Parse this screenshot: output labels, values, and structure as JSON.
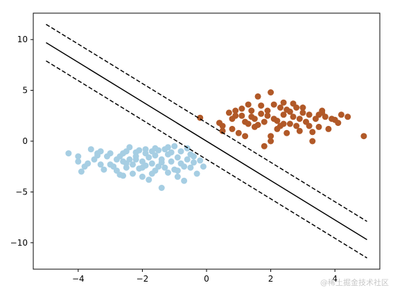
{
  "watermark": "@稀土掘金技术社区",
  "chart_data": {
    "type": "scatter",
    "title": "",
    "xlabel": "",
    "ylabel": "",
    "xlim": [
      -5.4,
      5.4
    ],
    "ylim": [
      -12.6,
      12.6
    ],
    "xticks": [
      -4,
      -2,
      0,
      2,
      4
    ],
    "yticks": [
      -10,
      -5,
      0,
      5,
      10
    ],
    "grid": false,
    "series": [
      {
        "color": "#a6cee3",
        "points": [
          [
            -4.3,
            -1.2
          ],
          [
            -4.0,
            -2.0
          ],
          [
            -4.0,
            -1.5
          ],
          [
            -3.9,
            -3.0
          ],
          [
            -3.8,
            -2.5
          ],
          [
            -3.7,
            -2.2
          ],
          [
            -3.6,
            -0.8
          ],
          [
            -3.5,
            -1.8
          ],
          [
            -3.4,
            -1.2
          ],
          [
            -3.3,
            -1.0
          ],
          [
            -3.2,
            -2.8
          ],
          [
            -3.1,
            -1.5
          ],
          [
            -3.0,
            -2.3
          ],
          [
            -2.9,
            -2.5
          ],
          [
            -2.8,
            -1.8
          ],
          [
            -2.8,
            -2.9
          ],
          [
            -2.7,
            -1.5
          ],
          [
            -2.6,
            -2.0
          ],
          [
            -2.6,
            -3.4
          ],
          [
            -2.5,
            -2.6
          ],
          [
            -2.5,
            -1.0
          ],
          [
            -2.4,
            -0.6
          ],
          [
            -2.4,
            -1.8
          ],
          [
            -2.3,
            -2.3
          ],
          [
            -2.3,
            -3.2
          ],
          [
            -2.2,
            -1.5
          ],
          [
            -2.1,
            -2.7
          ],
          [
            -2.1,
            -0.9
          ],
          [
            -2.0,
            -2.0
          ],
          [
            -2.0,
            -3.5
          ],
          [
            -1.9,
            -1.2
          ],
          [
            -1.9,
            -2.4
          ],
          [
            -1.8,
            -1.6
          ],
          [
            -1.8,
            -3.8
          ],
          [
            -1.7,
            -1.0
          ],
          [
            -1.7,
            -2.2
          ],
          [
            -1.6,
            -2.9
          ],
          [
            -1.6,
            -1.4
          ],
          [
            -1.5,
            -0.9
          ],
          [
            -1.5,
            -2.5
          ],
          [
            -1.4,
            -1.8
          ],
          [
            -1.4,
            -4.6
          ],
          [
            -1.3,
            -0.8
          ],
          [
            -1.3,
            -2.6
          ],
          [
            -1.2,
            -1.3
          ],
          [
            -1.2,
            -3.1
          ],
          [
            -1.1,
            -2.0
          ],
          [
            -1.0,
            -0.5
          ],
          [
            -1.0,
            -2.8
          ],
          [
            -0.9,
            -1.6
          ],
          [
            -0.9,
            -3.5
          ],
          [
            -0.8,
            -2.2
          ],
          [
            -0.8,
            -1.0
          ],
          [
            -0.7,
            -2.5
          ],
          [
            -0.7,
            -3.9
          ],
          [
            -0.6,
            -1.8
          ],
          [
            -0.5,
            -2.6
          ],
          [
            -0.5,
            -1.3
          ],
          [
            -0.4,
            -2.1
          ],
          [
            -0.3,
            -3.2
          ],
          [
            -0.2,
            -1.9
          ],
          [
            -0.1,
            -2.5
          ],
          [
            -0.6,
            -0.7
          ],
          [
            -1.1,
            -1.1
          ],
          [
            -1.6,
            -0.7
          ],
          [
            -2.2,
            -1.1
          ],
          [
            -2.7,
            -3.3
          ],
          [
            -3.3,
            -2.3
          ],
          [
            -2.0,
            -2.6
          ],
          [
            -0.9,
            -2.9
          ],
          [
            -3.4,
            -1.4
          ],
          [
            -2.6,
            -1.2
          ],
          [
            -1.9,
            -0.8
          ],
          [
            -1.4,
            -2.1
          ],
          [
            -0.4,
            -1.5
          ],
          [
            -2.5,
            -2.2
          ],
          [
            -1.7,
            -3.2
          ],
          [
            -1.2,
            -0.6
          ],
          [
            -3.0,
            -1.2
          ],
          [
            -2.2,
            -1.8
          ]
        ]
      },
      {
        "color": "#b15928",
        "points": [
          [
            -0.2,
            2.3
          ],
          [
            0.4,
            1.8
          ],
          [
            0.5,
            1.0
          ],
          [
            0.7,
            2.8
          ],
          [
            0.8,
            1.2
          ],
          [
            0.9,
            2.5
          ],
          [
            1.0,
            0.8
          ],
          [
            1.1,
            3.2
          ],
          [
            1.2,
            1.9
          ],
          [
            1.3,
            3.6
          ],
          [
            1.4,
            2.4
          ],
          [
            1.5,
            1.4
          ],
          [
            1.6,
            4.4
          ],
          [
            1.7,
            2.7
          ],
          [
            1.8,
            1.9
          ],
          [
            1.9,
            3.0
          ],
          [
            2.0,
            4.8
          ],
          [
            2.0,
            0.5
          ],
          [
            2.1,
            2.2
          ],
          [
            2.2,
            1.2
          ],
          [
            2.3,
            3.3
          ],
          [
            2.4,
            2.6
          ],
          [
            2.4,
            1.7
          ],
          [
            2.5,
            0.8
          ],
          [
            2.6,
            2.9
          ],
          [
            2.7,
            3.7
          ],
          [
            2.8,
            1.5
          ],
          [
            2.9,
            2.2
          ],
          [
            3.0,
            3.3
          ],
          [
            3.1,
            1.9
          ],
          [
            3.2,
            2.6
          ],
          [
            3.3,
            0.9
          ],
          [
            3.4,
            2.2
          ],
          [
            3.5,
            1.4
          ],
          [
            3.6,
            3.0
          ],
          [
            3.7,
            2.4
          ],
          [
            3.8,
            1.2
          ],
          [
            3.9,
            2.2
          ],
          [
            4.0,
            2.1
          ],
          [
            4.1,
            1.8
          ],
          [
            4.2,
            2.6
          ],
          [
            4.4,
            2.4
          ],
          [
            4.9,
            0.5
          ],
          [
            3.3,
            0.0
          ],
          [
            2.0,
            0.0
          ],
          [
            1.8,
            -0.5
          ],
          [
            1.2,
            0.5
          ],
          [
            0.5,
            1.5
          ],
          [
            1.4,
            3.0
          ],
          [
            2.7,
            2.4
          ],
          [
            2.2,
            2.0
          ],
          [
            3.0,
            2.8
          ],
          [
            1.7,
            3.5
          ],
          [
            2.5,
            3.1
          ],
          [
            1.9,
            2.5
          ],
          [
            0.8,
            2.2
          ],
          [
            2.9,
            1.0
          ],
          [
            2.3,
            1.5
          ],
          [
            3.6,
            2.8
          ],
          [
            1.6,
            1.6
          ],
          [
            2.6,
            1.7
          ],
          [
            3.5,
            2.6
          ],
          [
            1.1,
            2.5
          ],
          [
            2.1,
            3.6
          ],
          [
            1.5,
            2.2
          ],
          [
            2.8,
            3.3
          ],
          [
            0.9,
            3.0
          ],
          [
            3.2,
            1.5
          ],
          [
            1.3,
            1.7
          ],
          [
            2.4,
            3.8
          ]
        ]
      }
    ],
    "lines": [
      {
        "style": "solid",
        "x": [
          -5,
          5
        ],
        "y": [
          9.7,
          -9.7
        ]
      },
      {
        "style": "dashed",
        "x": [
          -5,
          5
        ],
        "y": [
          11.5,
          -7.9
        ]
      },
      {
        "style": "dashed",
        "x": [
          -5,
          5
        ],
        "y": [
          7.9,
          -11.5
        ]
      }
    ]
  }
}
